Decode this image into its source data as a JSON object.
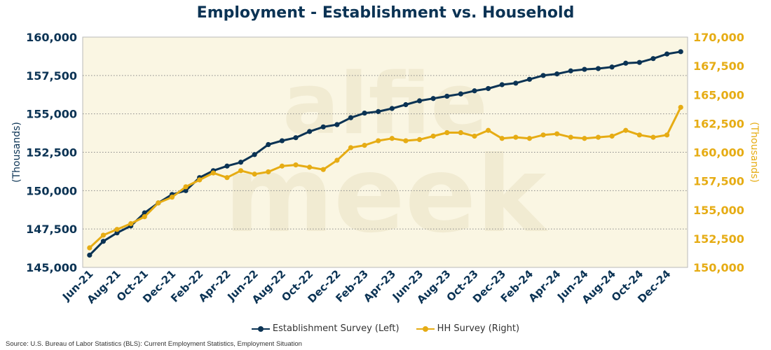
{
  "colors": {
    "establishment": "#0b3354",
    "household": "#e6ac14",
    "plot_bg": "#faf6e3"
  },
  "legend": [
    {
      "label": "Establishment Survey (Left)"
    },
    {
      "label": "HH Survey (Right)"
    }
  ],
  "source": "Source: U.S. Bureau of Labor Statistics (BLS): Current Employment Statistics, Employment Situation",
  "watermark": "alfie meek",
  "chart_data": {
    "type": "line",
    "title": "Employment - Establishment vs. Household",
    "ylabel_left": "(Thousands)",
    "ylabel_right": "(Thousands)",
    "ylim_left": [
      145000,
      160000
    ],
    "ylim_right": [
      150000,
      170000
    ],
    "yticks_left": [
      "145,000",
      "147,500",
      "150,000",
      "152,500",
      "155,000",
      "157,500",
      "160,000"
    ],
    "yticks_right": [
      "150,000",
      "152,500",
      "155,000",
      "157,500",
      "160,000",
      "162,500",
      "165,000",
      "167,500",
      "170,000"
    ],
    "grid": true,
    "legend_position": "bottom",
    "x": [
      "Jun-21",
      "Jul-21",
      "Aug-21",
      "Sep-21",
      "Oct-21",
      "Nov-21",
      "Dec-21",
      "Jan-22",
      "Feb-22",
      "Mar-22",
      "Apr-22",
      "May-22",
      "Jun-22",
      "Jul-22",
      "Aug-22",
      "Sep-22",
      "Oct-22",
      "Nov-22",
      "Dec-22",
      "Jan-23",
      "Feb-23",
      "Mar-23",
      "Apr-23",
      "May-23",
      "Jun-23",
      "Jul-23",
      "Aug-23",
      "Sep-23",
      "Oct-23",
      "Nov-23",
      "Dec-23",
      "Jan-24",
      "Feb-24",
      "Mar-24",
      "Apr-24",
      "May-24",
      "Jun-24",
      "Jul-24",
      "Aug-24",
      "Sep-24",
      "Oct-24",
      "Nov-24",
      "Dec-24",
      "Jan-25"
    ],
    "x_tick_labels": [
      "Jun-21",
      "Aug-21",
      "Oct-21",
      "Dec-21",
      "Feb-22",
      "Apr-22",
      "Jun-22",
      "Aug-22",
      "Oct-22",
      "Dec-22",
      "Feb-23",
      "Apr-23",
      "Jun-23",
      "Aug-23",
      "Oct-23",
      "Dec-23",
      "Feb-24",
      "Apr-24",
      "Jun-24",
      "Aug-24",
      "Oct-24",
      "Dec-24"
    ],
    "series": [
      {
        "name": "Establishment Survey (Left)",
        "axis": "left",
        "values": [
          145800,
          146700,
          147250,
          147700,
          148550,
          149200,
          149750,
          150000,
          150850,
          151300,
          151600,
          151850,
          152350,
          153000,
          153250,
          153450,
          153850,
          154150,
          154300,
          154750,
          155050,
          155150,
          155350,
          155600,
          155850,
          156000,
          156150,
          156300,
          156500,
          156650,
          156900,
          157000,
          157250,
          157500,
          157600,
          157800,
          157900,
          157950,
          158050,
          158300,
          158350,
          158600,
          158900,
          159050
        ]
      },
      {
        "name": "HH Survey (Right)",
        "axis": "right",
        "values": [
          151700,
          152800,
          153300,
          153800,
          154400,
          155600,
          156100,
          157000,
          157600,
          158200,
          157800,
          158400,
          158100,
          158300,
          158800,
          158900,
          158700,
          158500,
          159300,
          160400,
          160600,
          161000,
          161200,
          161000,
          161100,
          161400,
          161700,
          161700,
          161400,
          161900,
          161200,
          161300,
          161200,
          161500,
          161600,
          161300,
          161200,
          161300,
          161400,
          161900,
          161500,
          161300,
          161500,
          163900
        ]
      }
    ]
  }
}
